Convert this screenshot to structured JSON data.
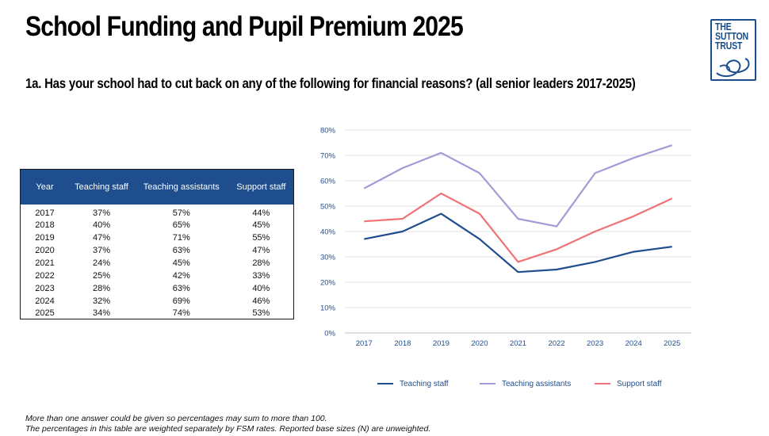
{
  "header": {
    "title": "School Funding and Pupil Premium 2025",
    "subtitle": "1a. Has your school had to cut back on any of the following for financial reasons? (all senior leaders 2017-2025)"
  },
  "logo": {
    "line1": "THE",
    "line2": "SUTTON",
    "line3": "TRUST"
  },
  "table": {
    "headers": [
      "Year",
      "Teaching staff",
      "Teaching assistants",
      "Support staff"
    ],
    "rows": [
      [
        "2017",
        "37%",
        "57%",
        "44%"
      ],
      [
        "2018",
        "40%",
        "65%",
        "45%"
      ],
      [
        "2019",
        "47%",
        "71%",
        "55%"
      ],
      [
        "2020",
        "37%",
        "63%",
        "47%"
      ],
      [
        "2021",
        "24%",
        "45%",
        "28%"
      ],
      [
        "2022",
        "25%",
        "42%",
        "33%"
      ],
      [
        "2023",
        "28%",
        "63%",
        "40%"
      ],
      [
        "2024",
        "32%",
        "69%",
        "46%"
      ],
      [
        "2025",
        "34%",
        "74%",
        "53%"
      ]
    ]
  },
  "chart_data": {
    "type": "line",
    "title": "",
    "xlabel": "",
    "ylabel": "",
    "categories": [
      "2017",
      "2018",
      "2019",
      "2020",
      "2021",
      "2022",
      "2023",
      "2024",
      "2025"
    ],
    "ylim": [
      0,
      80
    ],
    "yticks": [
      "0%",
      "10%",
      "20%",
      "30%",
      "40%",
      "50%",
      "60%",
      "70%",
      "80%"
    ],
    "grid": true,
    "legend_position": "bottom",
    "series": [
      {
        "name": "Teaching staff",
        "color": "#1f4e8f",
        "values": [
          37,
          40,
          47,
          37,
          24,
          25,
          28,
          32,
          34
        ]
      },
      {
        "name": "Teaching assistants",
        "color": "#a69ad6",
        "values": [
          57,
          65,
          71,
          63,
          45,
          42,
          63,
          69,
          74
        ]
      },
      {
        "name": "Support staff",
        "color": "#f07276",
        "values": [
          44,
          45,
          55,
          47,
          28,
          33,
          40,
          46,
          53
        ]
      }
    ]
  },
  "footnotes": [
    "More than one answer could be given so percentages may sum to more than 100.",
    "The percentages in this table are weighted separately by FSM rates. Reported base sizes (N) are unweighted."
  ]
}
